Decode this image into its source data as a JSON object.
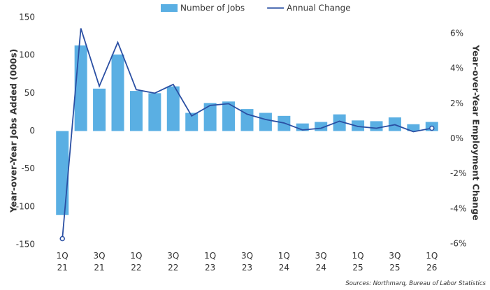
{
  "chart_data": {
    "type": "bar_line",
    "categories": [
      "1Q 21",
      null,
      "3Q 21",
      null,
      "1Q 22",
      null,
      "3Q 22",
      null,
      "1Q 23",
      null,
      "3Q 23",
      null,
      "1Q 24",
      null,
      "3Q 24",
      null,
      "1Q 25",
      null,
      "3Q 25",
      null,
      "1Q 26"
    ],
    "series": [
      {
        "name": "Number of Jobs",
        "color": "#5aafe3",
        "type": "bar",
        "values": [
          -111,
          113,
          56,
          101,
          53,
          50,
          59,
          24,
          37,
          39,
          29,
          24,
          20,
          10,
          12,
          22,
          14,
          13,
          18,
          9,
          12
        ]
      },
      {
        "name": "Annual Change",
        "color": "#2a4fa3",
        "type": "line",
        "axis": "y2",
        "values": [
          -5.7,
          6.3,
          3.0,
          5.5,
          2.8,
          2.6,
          3.1,
          1.3,
          1.9,
          2.0,
          1.4,
          1.1,
          0.9,
          0.5,
          0.6,
          1.0,
          0.7,
          0.6,
          0.8,
          0.4,
          0.6
        ]
      }
    ],
    "ylabel": "Year-over-Year Jobs Added (000s)",
    "y2label": "Year-over-Year Employment Change",
    "ylim": [
      -150,
      150
    ],
    "yticks": [
      -150,
      -100,
      -50,
      0,
      50,
      100,
      150
    ],
    "y2lim": [
      -6.04,
      6.92
    ],
    "y2ticks": [
      {
        "value": -6,
        "label": "-6%"
      },
      {
        "value": -4,
        "label": "-4%"
      },
      {
        "value": -2,
        "label": "-2%"
      },
      {
        "value": 0,
        "label": "0%"
      },
      {
        "value": 2,
        "label": "2%"
      },
      {
        "value": 4,
        "label": "4%"
      },
      {
        "value": 6,
        "label": "6%"
      }
    ],
    "legend": "top",
    "source": "Sources: Northmarq, Bureau of Labor Statistics"
  }
}
